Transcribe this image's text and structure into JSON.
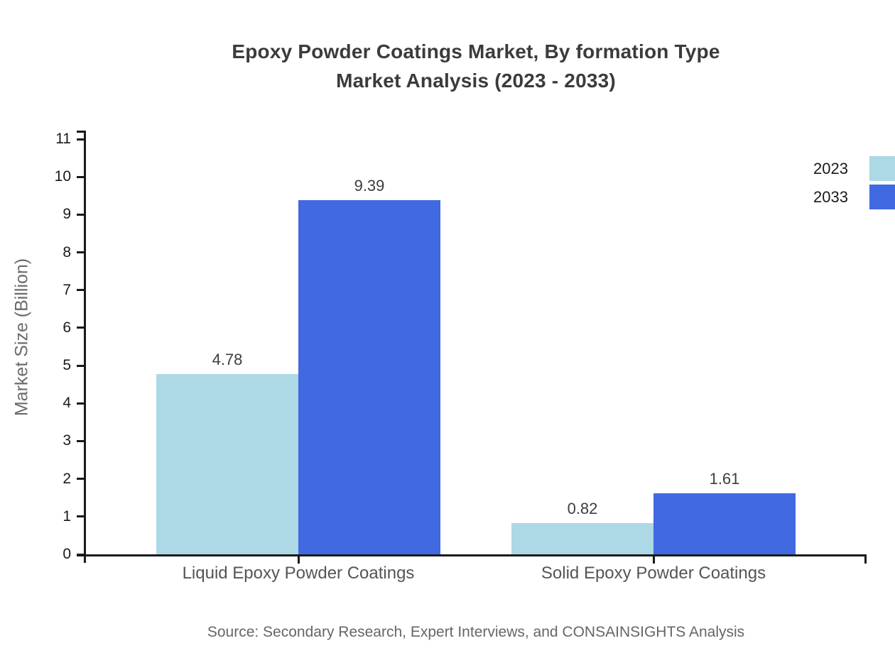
{
  "title": {
    "line1": "Epoxy Powder Coatings Market, By formation Type",
    "line2": "Market Analysis (2023 - 2033)"
  },
  "source": "Source: Secondary Research, Expert Interviews, and CONSAINSIGHTS Analysis",
  "colors": {
    "background": "#ffffff",
    "axis": "#1a1a1a",
    "title_text": "#3b3b3b",
    "ylabel_text": "#6b6b6b",
    "category_text": "#555555",
    "value_text": "#3d3d3d",
    "source_text": "#666666"
  },
  "chart_data": {
    "type": "bar",
    "title": "Epoxy Powder Coatings Market, By formation Type Market Analysis (2023 - 2033)",
    "categories": [
      "Liquid Epoxy Powder Coatings",
      "Solid Epoxy Powder Coatings"
    ],
    "series": [
      {
        "name": "2023",
        "color": "#ADD8E6",
        "values": [
          4.78,
          0.82
        ]
      },
      {
        "name": "2033",
        "color": "#4169E1",
        "values": [
          9.39,
          1.61
        ]
      }
    ],
    "data_labels": [
      {
        "category": "Liquid Epoxy Powder Coatings",
        "2023": "4.78",
        "2033": "9.39"
      },
      {
        "category": "Solid Epoxy Powder Coatings",
        "2023": "0.82",
        "2033": "1.61"
      }
    ],
    "xlabel": "",
    "ylabel": "Market Size (Billion)",
    "yticks": [
      0,
      1,
      2,
      3,
      4,
      5,
      6,
      7,
      8,
      9,
      10,
      11
    ],
    "ylim": [
      0,
      11.25
    ],
    "grid": false,
    "legend_position": "top-right"
  }
}
